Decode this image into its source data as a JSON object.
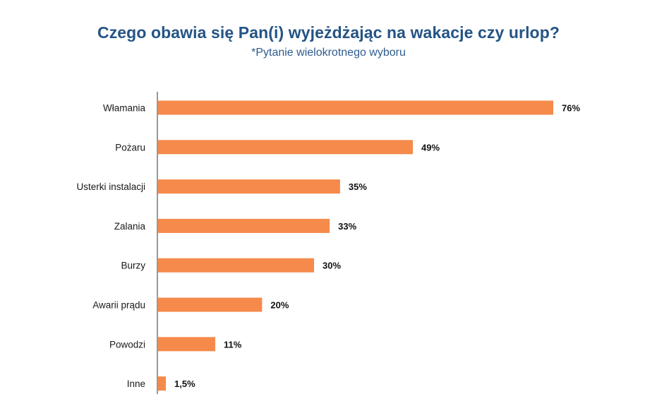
{
  "chart_data": {
    "type": "bar",
    "orientation": "horizontal",
    "title": "Czego obawia się Pan(i) wyjeżdżając na wakacje czy urlop?",
    "subtitle": "*Pytanie wielokrotnego wyboru",
    "categories": [
      "Włamania",
      "Pożaru",
      "Usterki instalacji",
      "Zalania",
      "Burzy",
      "Awarii prądu",
      "Powodzi",
      "Inne"
    ],
    "values": [
      76,
      49,
      35,
      33,
      30,
      20,
      11,
      1.5
    ],
    "value_labels": [
      "76%",
      "49%",
      "35%",
      "33%",
      "30%",
      "20%",
      "11%",
      "1,5%"
    ],
    "unit": "%",
    "xlim": [
      0,
      76
    ],
    "grid": false,
    "legend": "none",
    "bar_color": "#f58a4b",
    "axis_color": "#555555"
  }
}
